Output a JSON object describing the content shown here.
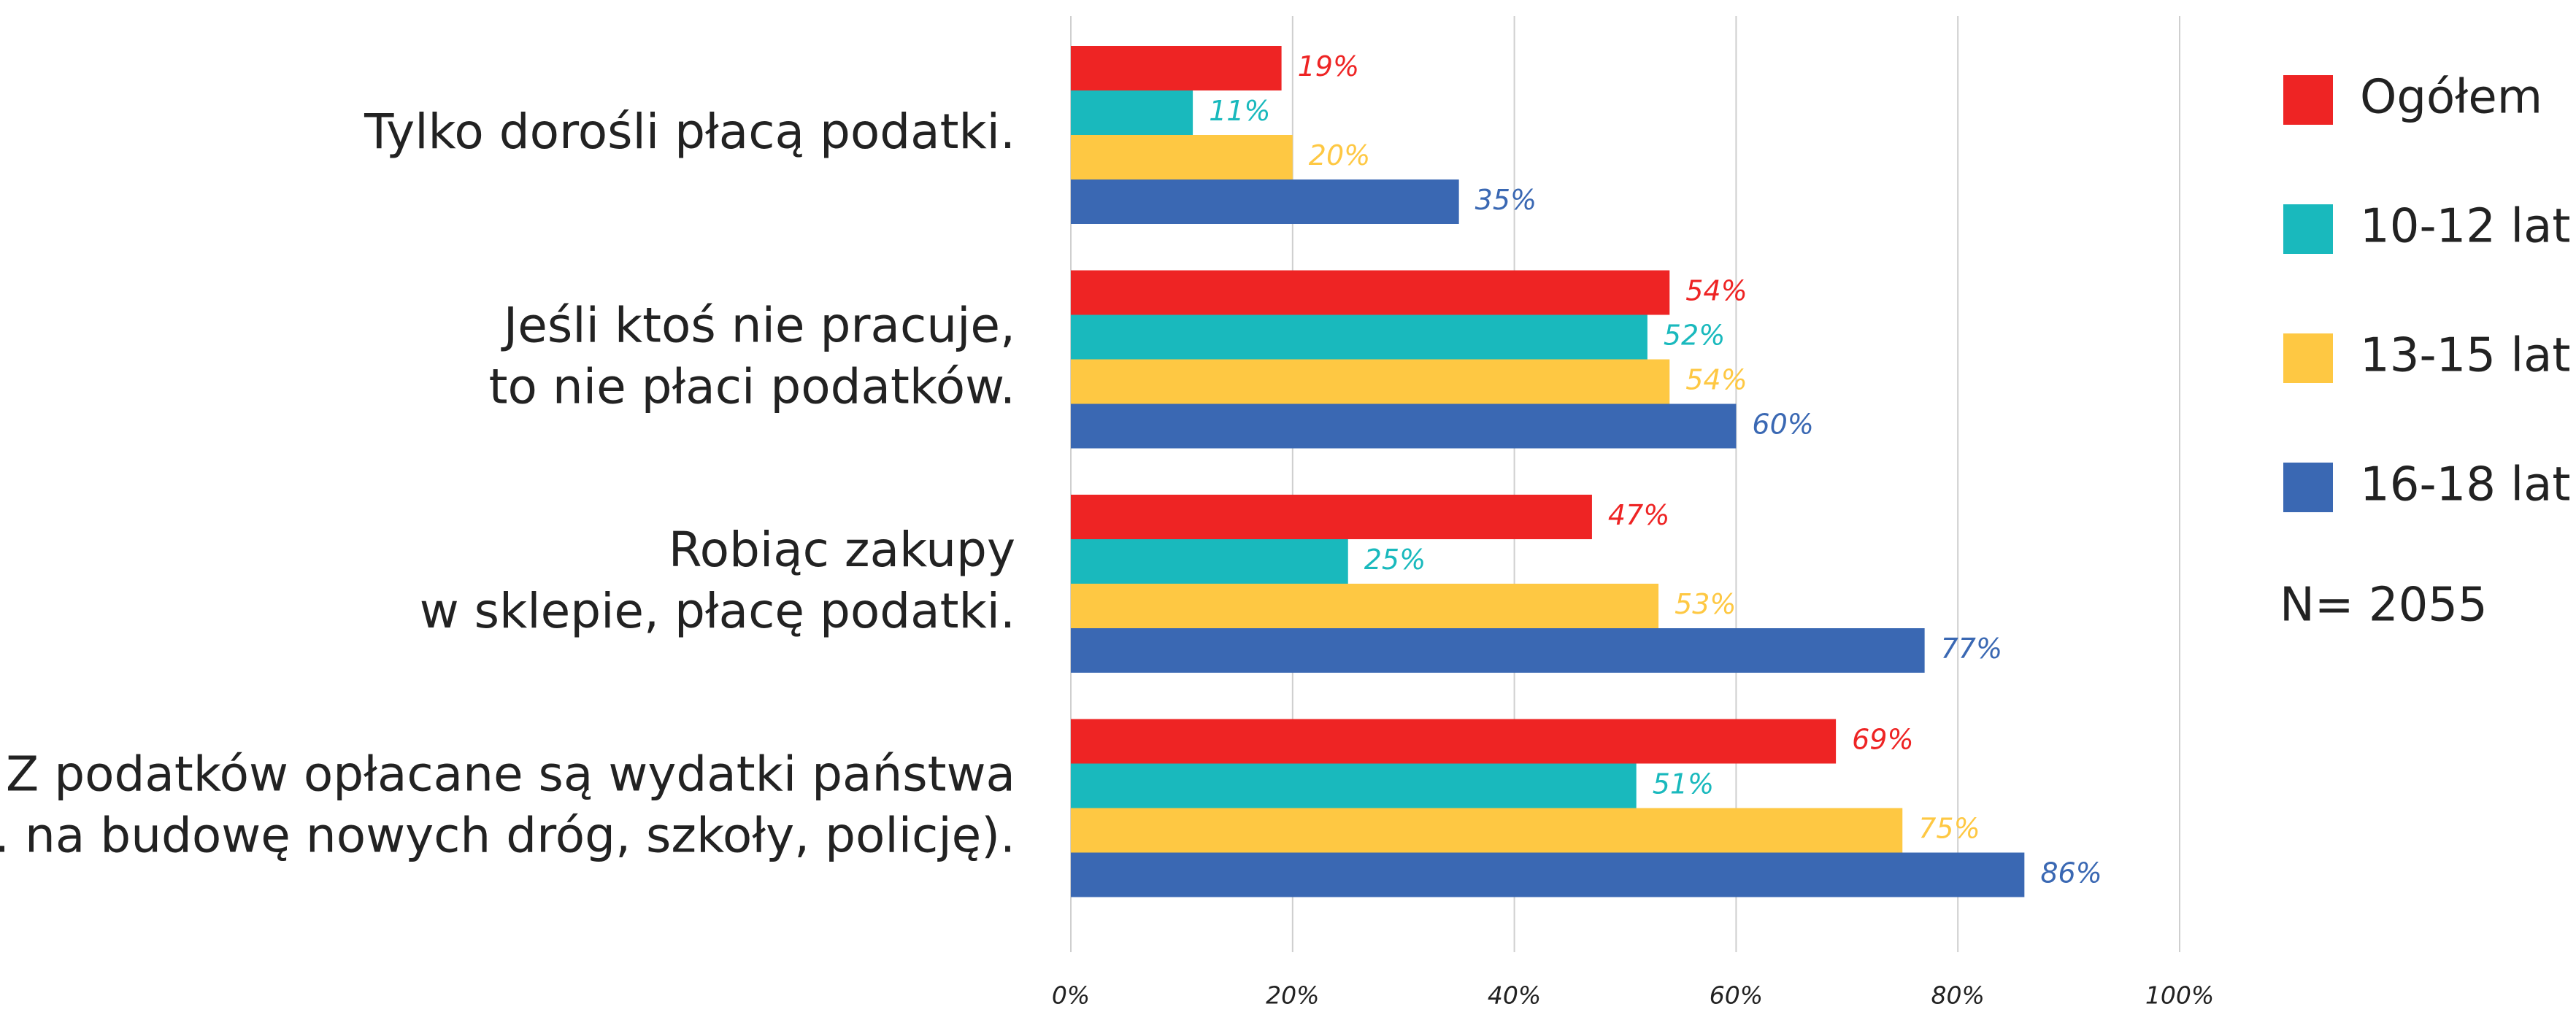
{
  "chart_data": {
    "type": "bar",
    "orientation": "horizontal",
    "categories": [
      "Tylko dorośli płacą podatki.",
      "Jeśli ktoś nie pracuje,\nto nie płaci podatków.",
      "Robiąc zakupy\nw sklepie, płacę podatki.",
      "Z podatków opłacane są wydatki państwa\n(np. na budowę nowych dróg, szkoły, policję)."
    ],
    "series": [
      {
        "name": "Ogółem",
        "color": "#ee2424",
        "values": [
          19,
          54,
          47,
          69
        ],
        "value_labels": [
          "19%",
          "54%",
          "47%",
          "69%"
        ]
      },
      {
        "name": "10-12 lat",
        "color": "#19b9bd",
        "values": [
          11,
          52,
          25,
          51
        ],
        "value_labels": [
          "11%",
          "52%",
          "25%",
          "51%"
        ]
      },
      {
        "name": "13-15 lat",
        "color": "#fec843",
        "values": [
          20,
          54,
          53,
          75
        ],
        "value_labels": [
          "20%",
          "54%",
          "53%",
          "75%"
        ]
      },
      {
        "name": "16-18 lat",
        "color": "#3a68b3",
        "values": [
          35,
          60,
          77,
          86
        ],
        "value_labels": [
          "35%",
          "60%",
          "77%",
          "86%"
        ]
      }
    ],
    "xlim": [
      0,
      100
    ],
    "xticks": [
      {
        "value": 0,
        "label": "0%"
      },
      {
        "value": 20,
        "label": "20%"
      },
      {
        "value": 40,
        "label": "40%"
      },
      {
        "value": 60,
        "label": "60%"
      },
      {
        "value": 80,
        "label": "80%"
      },
      {
        "value": 100,
        "label": "100%"
      }
    ],
    "grid": true,
    "legend": "right",
    "note": "N= 2055"
  }
}
